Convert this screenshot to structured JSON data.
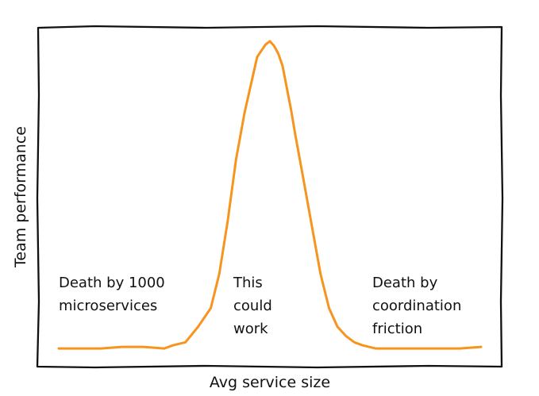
{
  "chart_data": {
    "type": "line",
    "title": "",
    "xlabel": "Avg service size",
    "ylabel": "Team performance",
    "xlim": [
      0,
      100
    ],
    "ylim": [
      0,
      100
    ],
    "grid": false,
    "series": [
      {
        "color": "#f7941d",
        "x": [
          0,
          5,
          10,
          15,
          20,
          25,
          27,
          30,
          33,
          36,
          38,
          40,
          42,
          44,
          45,
          46,
          47,
          48,
          49,
          50,
          51,
          52,
          53,
          54,
          55,
          56,
          58,
          60,
          62,
          64,
          66,
          68,
          70,
          72,
          75,
          80,
          85,
          90,
          95,
          100
        ],
        "y": [
          1,
          1,
          1,
          1.5,
          1.5,
          1,
          2,
          3,
          8,
          14,
          25,
          42,
          62,
          77,
          83,
          89,
          95,
          97,
          99,
          100,
          98.5,
          96,
          92,
          85,
          78,
          70,
          55,
          40,
          25,
          14,
          8,
          5,
          3,
          2,
          1,
          1,
          1,
          1,
          1,
          1.5
        ]
      }
    ],
    "annotations": [
      {
        "id": "left",
        "lines": [
          "Death by 1000",
          "microservices"
        ]
      },
      {
        "id": "middle",
        "lines": [
          "This",
          "could",
          "work"
        ]
      },
      {
        "id": "right",
        "lines": [
          "Death by",
          "coordination",
          "friction"
        ]
      }
    ]
  }
}
